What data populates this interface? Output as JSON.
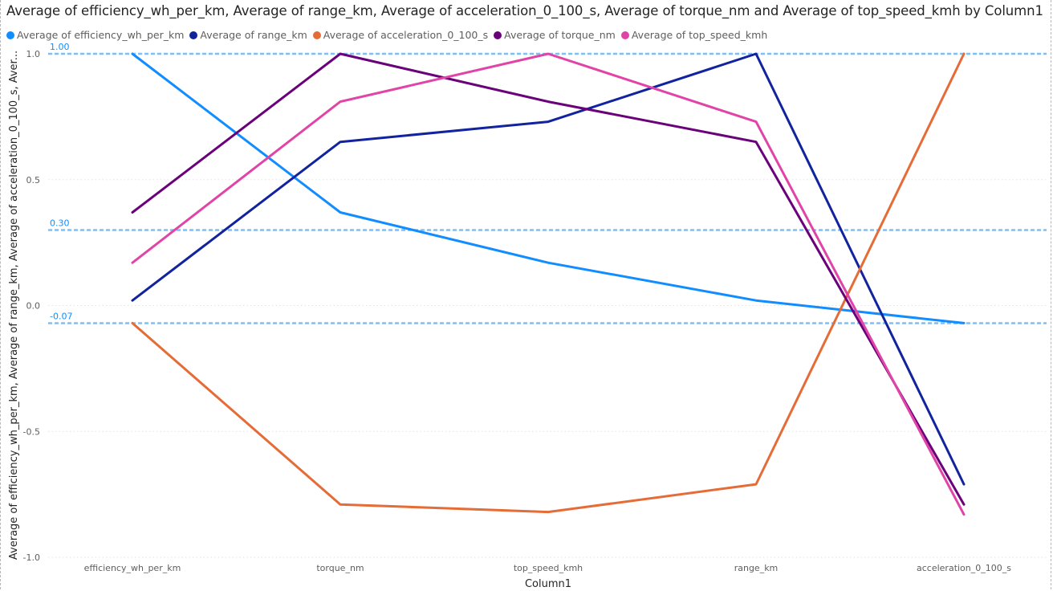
{
  "chart_data": {
    "type": "line",
    "title": "Average of efficiency_wh_per_km, Average of range_km, Average of acceleration_0_100_s, Average of torque_nm and Average of top_speed_kmh by Column1",
    "xlabel": "Column1",
    "ylabel": "Average of efficiency_wh_per_km, Average of range_km, Average of acceleration_0_100_s, Aver...",
    "categories": [
      "efficiency_wh_per_km",
      "torque_nm",
      "top_speed_kmh",
      "range_km",
      "acceleration_0_100_s"
    ],
    "ylim": [
      -1.0,
      1.0
    ],
    "yticks": [
      {
        "value": 1.0,
        "label": "1.0"
      },
      {
        "value": 0.5,
        "label": "0.5"
      },
      {
        "value": 0.0,
        "label": "0.0"
      },
      {
        "value": -0.5,
        "label": "-0.5"
      },
      {
        "value": -1.0,
        "label": "-1.0"
      }
    ],
    "grid": true,
    "legend_position": "top-left",
    "series": [
      {
        "name": "Average of efficiency_wh_per_km",
        "color": "#118DFF",
        "values": [
          1.0,
          0.37,
          0.17,
          0.02,
          -0.07
        ]
      },
      {
        "name": "Average of range_km",
        "color": "#12239E",
        "values": [
          0.02,
          0.65,
          0.73,
          1.0,
          -0.71
        ]
      },
      {
        "name": "Average of acceleration_0_100_s",
        "color": "#E66C37",
        "values": [
          -0.07,
          -0.79,
          -0.82,
          -0.71,
          1.0
        ]
      },
      {
        "name": "Average of torque_nm",
        "color": "#6B007B",
        "values": [
          0.37,
          1.0,
          0.81,
          0.65,
          -0.79
        ]
      },
      {
        "name": "Average of top_speed_kmh",
        "color": "#E044A7",
        "values": [
          0.17,
          0.81,
          1.0,
          0.73,
          -0.83
        ]
      }
    ],
    "reference_lines": [
      {
        "value": 1.0,
        "label": "1.00"
      },
      {
        "value": 0.3,
        "label": "0.30"
      },
      {
        "value": -0.07,
        "label": "-0.07"
      }
    ],
    "reference_color": "#7FBFF5"
  }
}
